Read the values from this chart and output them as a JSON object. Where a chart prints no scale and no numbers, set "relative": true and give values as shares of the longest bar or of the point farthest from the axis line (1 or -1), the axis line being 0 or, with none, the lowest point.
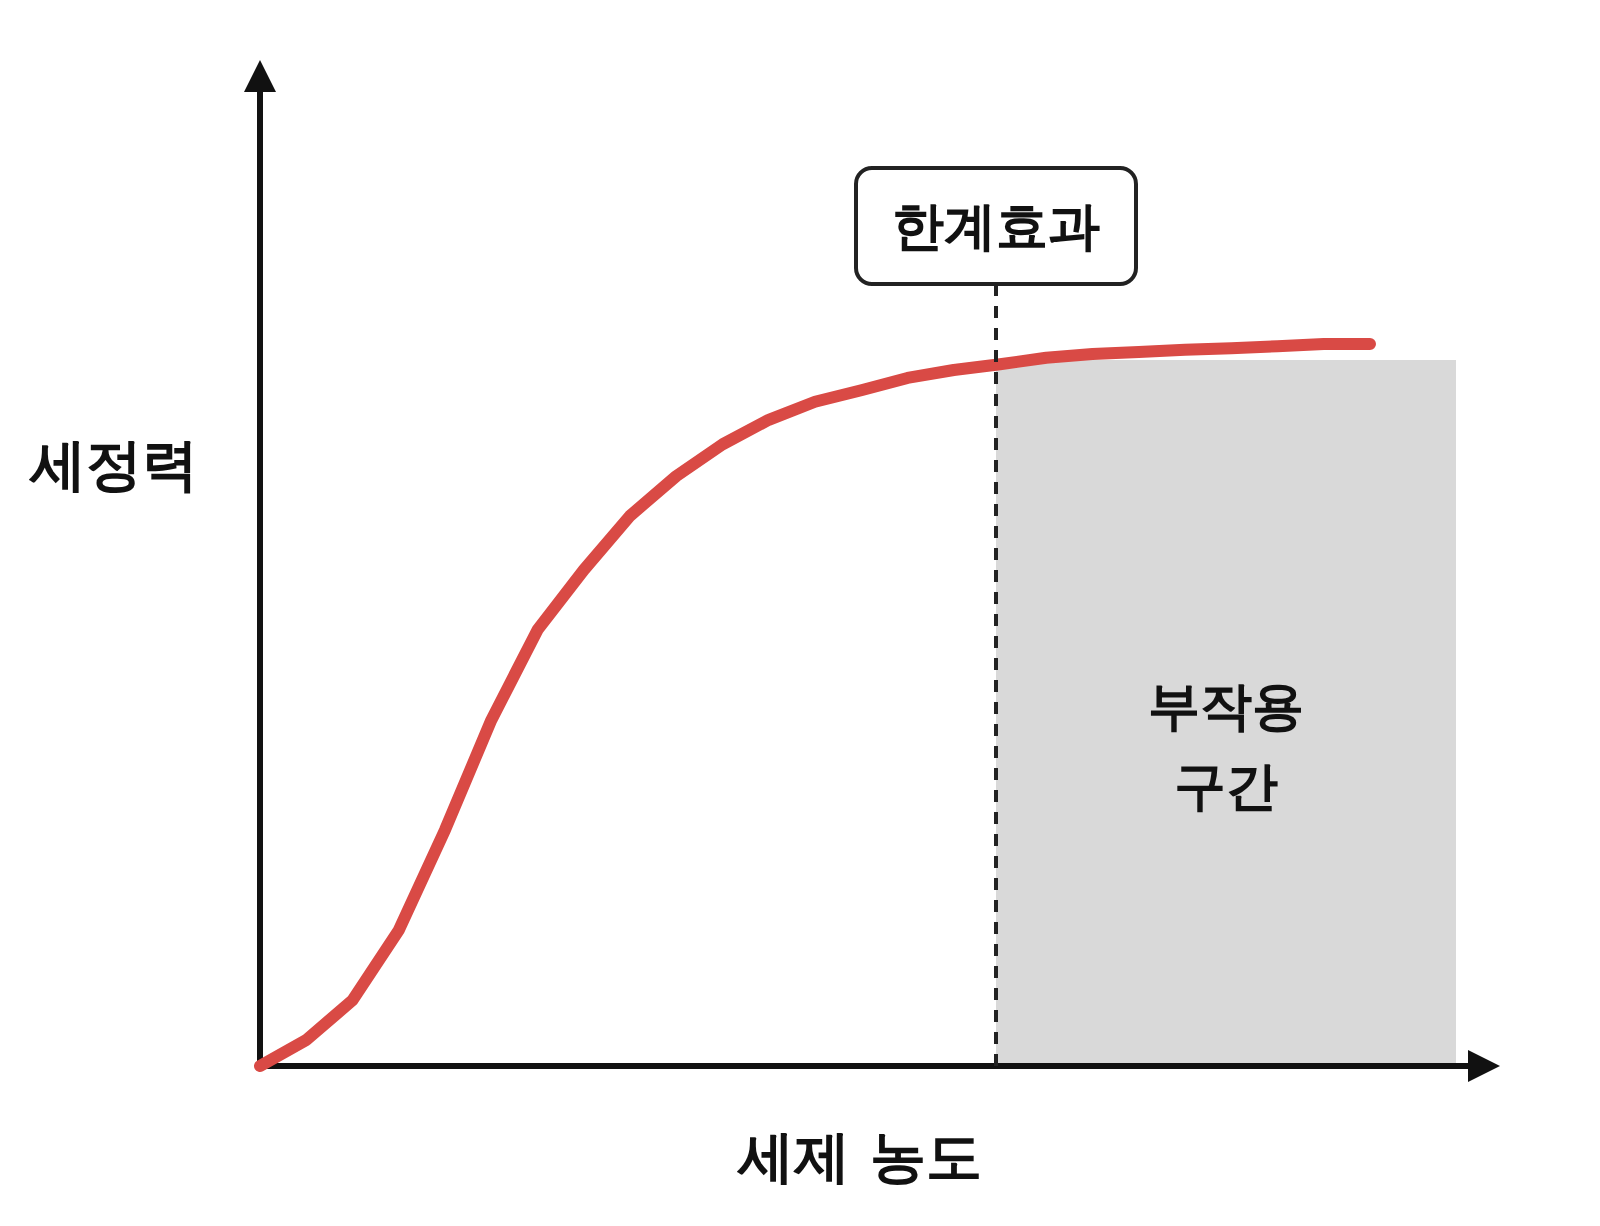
{
  "chart_data": {
    "type": "line",
    "relative": true,
    "xlabel": "세제 농도",
    "ylabel": "세정력",
    "categories": [
      null,
      null,
      null,
      null,
      null,
      null,
      null,
      null,
      null,
      null,
      null,
      null,
      null,
      null,
      null,
      null,
      null,
      null,
      null,
      null,
      null,
      null,
      null,
      null,
      null
    ],
    "series": [
      {
        "color": "#d94a45",
        "values": [
          0,
          0.036,
          0.091,
          0.188,
          0.327,
          0.479,
          0.604,
          0.687,
          0.762,
          0.817,
          0.861,
          0.895,
          0.92,
          0.936,
          0.953,
          0.964,
          0.972,
          0.981,
          0.986,
          0.989,
          0.992,
          0.994,
          0.997,
          1,
          1
        ]
      }
    ],
    "annotations": [
      "한계효과",
      "부작용 구간"
    ]
  }
}
